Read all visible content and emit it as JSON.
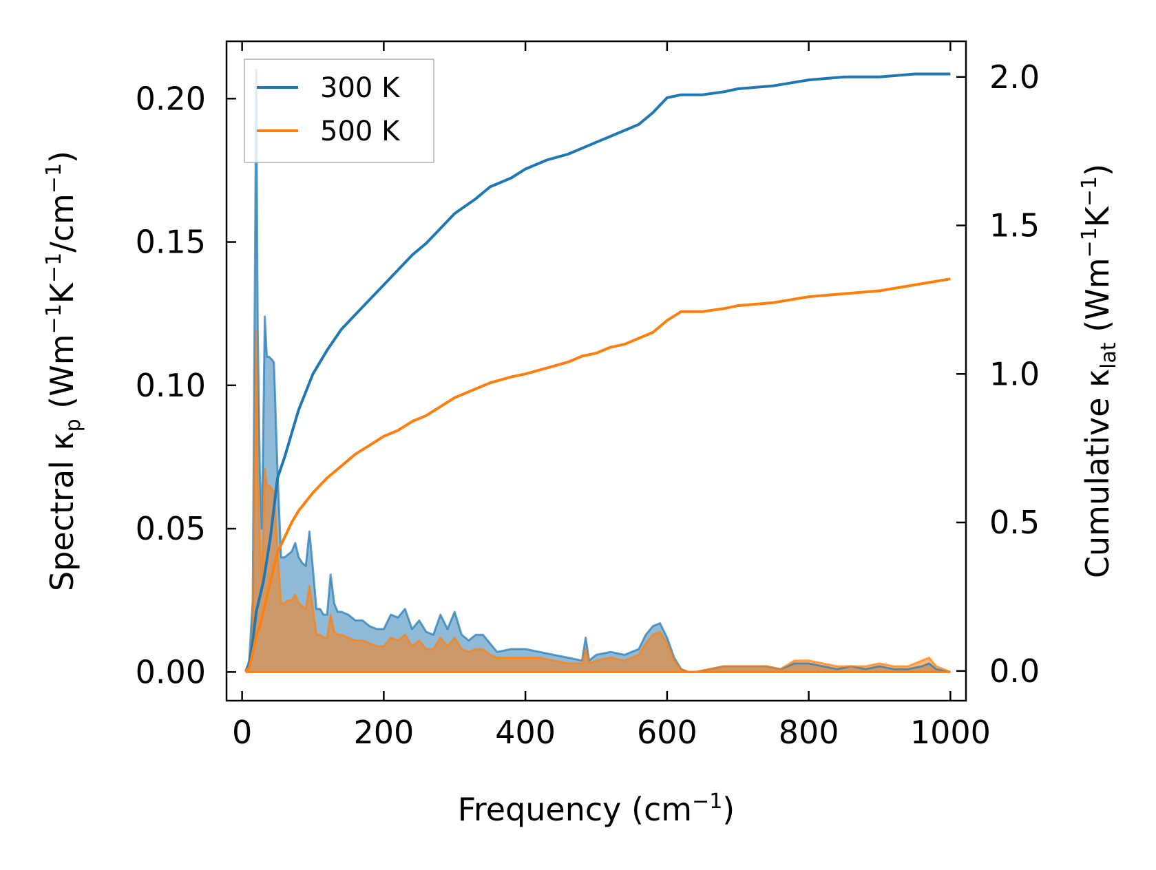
{
  "chart_data": {
    "type": "line",
    "xlabel": "Frequency (cm",
    "xlabel_sup": "−1",
    "xlabel_tail": ")",
    "ylabel_left": {
      "pre": "Spectral κ",
      "sub": "p",
      "mid1": " (Wm",
      "sup1": "−1",
      "mid2": "K",
      "sup2": "−1",
      "mid3": "/cm",
      "sup3": "−1",
      "tail": ")"
    },
    "ylabel_right": {
      "pre": "Cumulative κ",
      "sub": "lat",
      "mid1": " (Wm",
      "sup1": "−1",
      "mid2": "K",
      "sup2": "−1",
      "tail": ")"
    },
    "xlim": [
      -22,
      1022
    ],
    "ylim_left": [
      -0.01,
      0.22
    ],
    "ylim_right": [
      -0.1,
      2.12
    ],
    "x_ticks": [
      0,
      200,
      400,
      600,
      800,
      1000
    ],
    "x_tick_labels": [
      "0",
      "200",
      "400",
      "600",
      "800",
      "1000"
    ],
    "y_left_ticks": [
      0.0,
      0.05,
      0.1,
      0.15,
      0.2
    ],
    "y_left_tick_labels": [
      "0.00",
      "0.05",
      "0.10",
      "0.15",
      "0.20"
    ],
    "y_right_ticks": [
      0.0,
      0.5,
      1.0,
      1.5,
      2.0
    ],
    "y_right_tick_labels": [
      "0.0",
      "0.5",
      "1.0",
      "1.5",
      "2.0"
    ],
    "legend_position": "upper-left",
    "colors": {
      "300K": "#1f77b4",
      "500K": "#ff7f0e",
      "overlap": "#c49a6c"
    },
    "spectral_x": [
      5,
      10,
      15,
      20,
      22,
      25,
      28,
      32,
      35,
      38,
      42,
      45,
      50,
      55,
      60,
      65,
      70,
      75,
      80,
      85,
      90,
      95,
      100,
      105,
      110,
      115,
      120,
      125,
      130,
      135,
      140,
      150,
      160,
      170,
      180,
      190,
      200,
      210,
      220,
      230,
      240,
      250,
      260,
      270,
      280,
      290,
      300,
      310,
      320,
      330,
      340,
      350,
      360,
      380,
      400,
      420,
      440,
      460,
      480,
      485,
      490,
      500,
      520,
      540,
      560,
      570,
      580,
      590,
      600,
      610,
      620,
      630,
      640,
      660,
      680,
      700,
      720,
      740,
      760,
      780,
      800,
      820,
      840,
      860,
      880,
      900,
      920,
      940,
      960,
      970,
      980,
      1000
    ],
    "series": [
      {
        "name": "300 K",
        "spectral": [
          0.0,
          0.004,
          0.025,
          0.21,
          0.12,
          0.07,
          0.05,
          0.124,
          0.11,
          0.11,
          0.109,
          0.108,
          0.07,
          0.04,
          0.04,
          0.041,
          0.042,
          0.045,
          0.04,
          0.038,
          0.037,
          0.049,
          0.036,
          0.022,
          0.022,
          0.02,
          0.02,
          0.034,
          0.024,
          0.021,
          0.021,
          0.02,
          0.018,
          0.018,
          0.016,
          0.015,
          0.015,
          0.02,
          0.019,
          0.022,
          0.015,
          0.018,
          0.014,
          0.013,
          0.02,
          0.015,
          0.021,
          0.013,
          0.011,
          0.013,
          0.013,
          0.01,
          0.007,
          0.008,
          0.008,
          0.007,
          0.006,
          0.005,
          0.004,
          0.012,
          0.004,
          0.006,
          0.007,
          0.006,
          0.008,
          0.013,
          0.016,
          0.017,
          0.012,
          0.005,
          0.001,
          0.0,
          0.0,
          0.001,
          0.002,
          0.002,
          0.002,
          0.002,
          0.001,
          0.003,
          0.003,
          0.002,
          0.001,
          0.002,
          0.001,
          0.002,
          0.001,
          0.001,
          0.002,
          0.003,
          0.001,
          0.0
        ],
        "cumulative_x": [
          5,
          10,
          15,
          20,
          25,
          30,
          40,
          50,
          60,
          70,
          80,
          90,
          100,
          120,
          140,
          160,
          180,
          200,
          220,
          240,
          260,
          280,
          300,
          330,
          350,
          380,
          400,
          430,
          460,
          480,
          500,
          520,
          540,
          560,
          580,
          600,
          620,
          650,
          680,
          700,
          750,
          800,
          850,
          900,
          950,
          1000
        ],
        "cumulative": [
          0.0,
          0.02,
          0.1,
          0.2,
          0.25,
          0.3,
          0.45,
          0.65,
          0.72,
          0.8,
          0.88,
          0.94,
          1.0,
          1.08,
          1.15,
          1.2,
          1.25,
          1.3,
          1.35,
          1.4,
          1.44,
          1.49,
          1.54,
          1.59,
          1.63,
          1.66,
          1.69,
          1.72,
          1.74,
          1.76,
          1.78,
          1.8,
          1.82,
          1.84,
          1.88,
          1.93,
          1.94,
          1.94,
          1.95,
          1.96,
          1.97,
          1.99,
          2.0,
          2.0,
          2.01,
          2.01
        ]
      },
      {
        "name": "500 K",
        "spectral": [
          0.0,
          0.002,
          0.015,
          0.119,
          0.07,
          0.045,
          0.03,
          0.071,
          0.065,
          0.065,
          0.064,
          0.063,
          0.042,
          0.024,
          0.024,
          0.025,
          0.025,
          0.027,
          0.024,
          0.023,
          0.022,
          0.03,
          0.022,
          0.013,
          0.013,
          0.012,
          0.012,
          0.02,
          0.014,
          0.013,
          0.013,
          0.012,
          0.011,
          0.011,
          0.01,
          0.009,
          0.009,
          0.012,
          0.011,
          0.013,
          0.009,
          0.011,
          0.008,
          0.008,
          0.012,
          0.009,
          0.012,
          0.008,
          0.007,
          0.008,
          0.008,
          0.006,
          0.005,
          0.005,
          0.005,
          0.005,
          0.004,
          0.003,
          0.003,
          0.008,
          0.003,
          0.004,
          0.005,
          0.004,
          0.006,
          0.01,
          0.013,
          0.014,
          0.01,
          0.004,
          0.001,
          0.0,
          0.0,
          0.001,
          0.002,
          0.002,
          0.002,
          0.002,
          0.001,
          0.004,
          0.004,
          0.003,
          0.002,
          0.002,
          0.002,
          0.003,
          0.002,
          0.002,
          0.004,
          0.005,
          0.002,
          0.0
        ],
        "cumulative_x": [
          5,
          10,
          15,
          20,
          25,
          30,
          40,
          50,
          60,
          70,
          80,
          90,
          100,
          120,
          140,
          160,
          180,
          200,
          220,
          240,
          260,
          280,
          300,
          330,
          350,
          380,
          400,
          430,
          460,
          480,
          500,
          520,
          540,
          560,
          580,
          600,
          620,
          650,
          680,
          700,
          750,
          800,
          850,
          900,
          950,
          1000
        ],
        "cumulative": [
          0.0,
          0.01,
          0.06,
          0.12,
          0.15,
          0.2,
          0.3,
          0.4,
          0.45,
          0.5,
          0.54,
          0.57,
          0.6,
          0.65,
          0.69,
          0.73,
          0.76,
          0.79,
          0.81,
          0.84,
          0.86,
          0.89,
          0.92,
          0.95,
          0.97,
          0.99,
          1.0,
          1.02,
          1.04,
          1.06,
          1.07,
          1.09,
          1.1,
          1.12,
          1.14,
          1.18,
          1.21,
          1.21,
          1.22,
          1.23,
          1.24,
          1.26,
          1.27,
          1.28,
          1.3,
          1.32
        ]
      }
    ]
  }
}
